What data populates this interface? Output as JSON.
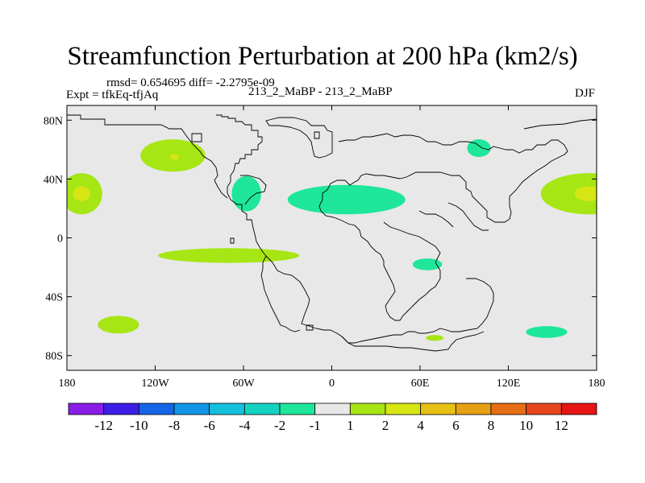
{
  "title": "Streamfunction Perturbation at 200 hPa (km2/s)",
  "left_info": {
    "stats": "rmsd= 0.654695 diff= -2.2795e-09",
    "expt": "Expt = tfkEq-tfjAq"
  },
  "center_string": "213_2_MaBP - 213_2_MaBP",
  "right_string": "DJF",
  "map": {
    "projection": "cylindrical equidistant",
    "lon_range": [
      -180,
      180
    ],
    "lat_range": [
      -90,
      90
    ],
    "background_color": "#e8e8e8",
    "lat_ticks": [
      {
        "value": 80,
        "label": "80N"
      },
      {
        "value": 40,
        "label": "40N"
      },
      {
        "value": 0,
        "label": "0"
      },
      {
        "value": -40,
        "label": "40S"
      },
      {
        "value": -80,
        "label": "80S"
      }
    ],
    "lon_ticks": [
      {
        "value": -180,
        "label": "180"
      },
      {
        "value": -120,
        "label": "120W"
      },
      {
        "value": -60,
        "label": "60W"
      },
      {
        "value": 0,
        "label": "0"
      },
      {
        "value": 60,
        "label": "60E"
      },
      {
        "value": 120,
        "label": "120E"
      },
      {
        "value": 180,
        "label": "180"
      }
    ]
  },
  "colorbar": {
    "colors": [
      "#8a1de6",
      "#3c1ee6",
      "#1466e6",
      "#1496e6",
      "#14c0dc",
      "#14d2c0",
      "#1ee69a",
      "#e8e8e8",
      "#a6e614",
      "#d6e614",
      "#e6c014",
      "#e6a014",
      "#e66e14",
      "#e6461e",
      "#e61414"
    ],
    "labels": [
      "-12",
      "-10",
      "-8",
      "-6",
      "-4",
      "-2",
      "-1",
      "1",
      "2",
      "4",
      "6",
      "8",
      "10",
      "12"
    ]
  },
  "chart_data": {
    "type": "heatmap",
    "title": "Streamfunction Perturbation at 200 hPa (km2/s)",
    "xlabel": "",
    "ylabel": "",
    "xlim": [
      -180,
      180
    ],
    "ylim": [
      -90,
      90
    ],
    "levels": [
      -12,
      -10,
      -8,
      -6,
      -4,
      -2,
      -1,
      1,
      2,
      4,
      6,
      8,
      10,
      12
    ],
    "regions": [
      {
        "lon": 175,
        "lat": 30,
        "dlon": 33,
        "dlat": 14,
        "level": "1 to 2",
        "color": "#a6e614"
      },
      {
        "lon": 175,
        "lat": 30,
        "dlon": 10,
        "dlat": 5,
        "level": "2 to 4",
        "color": "#d6e614"
      },
      {
        "lon": -170,
        "lat": 30,
        "dlon": 14,
        "dlat": 14,
        "level": "1 to 2",
        "color": "#a6e614"
      },
      {
        "lon": -170,
        "lat": 30,
        "dlon": 6,
        "dlat": 5,
        "level": "2 to 4",
        "color": "#d6e614"
      },
      {
        "lon": -108,
        "lat": 56,
        "dlon": 22,
        "dlat": 11,
        "level": "1 to 2",
        "color": "#a6e614"
      },
      {
        "lon": -107,
        "lat": 55,
        "dlon": 3,
        "dlat": 2,
        "level": "2 to 4",
        "color": "#d6e614"
      },
      {
        "lon": -58,
        "lat": 30,
        "dlon": 10,
        "dlat": 12,
        "level": "-2 to -1",
        "color": "#1ee69a"
      },
      {
        "lon": 10,
        "lat": 26,
        "dlon": 40,
        "dlat": 10,
        "level": "-2 to -1",
        "color": "#1ee69a"
      },
      {
        "lon": 100,
        "lat": 61,
        "dlon": 8,
        "dlat": 6,
        "level": "-2 to -1",
        "color": "#1ee69a"
      },
      {
        "lon": 65,
        "lat": -18,
        "dlon": 10,
        "dlat": 4,
        "level": "-2 to -1",
        "color": "#1ee69a"
      },
      {
        "lon": 146,
        "lat": -64,
        "dlon": 14,
        "dlat": 4,
        "level": "-2 to -1",
        "color": "#1ee69a"
      },
      {
        "lon": -70,
        "lat": -12,
        "dlon": 48,
        "dlat": 5,
        "level": "1 to 2",
        "color": "#a6e614"
      },
      {
        "lon": -145,
        "lat": -59,
        "dlon": 14,
        "dlat": 6,
        "level": "1 to 2",
        "color": "#a6e614"
      },
      {
        "lon": 70,
        "lat": -68,
        "dlon": 6,
        "dlat": 2,
        "level": "1 to 2",
        "color": "#a6e614"
      }
    ]
  }
}
